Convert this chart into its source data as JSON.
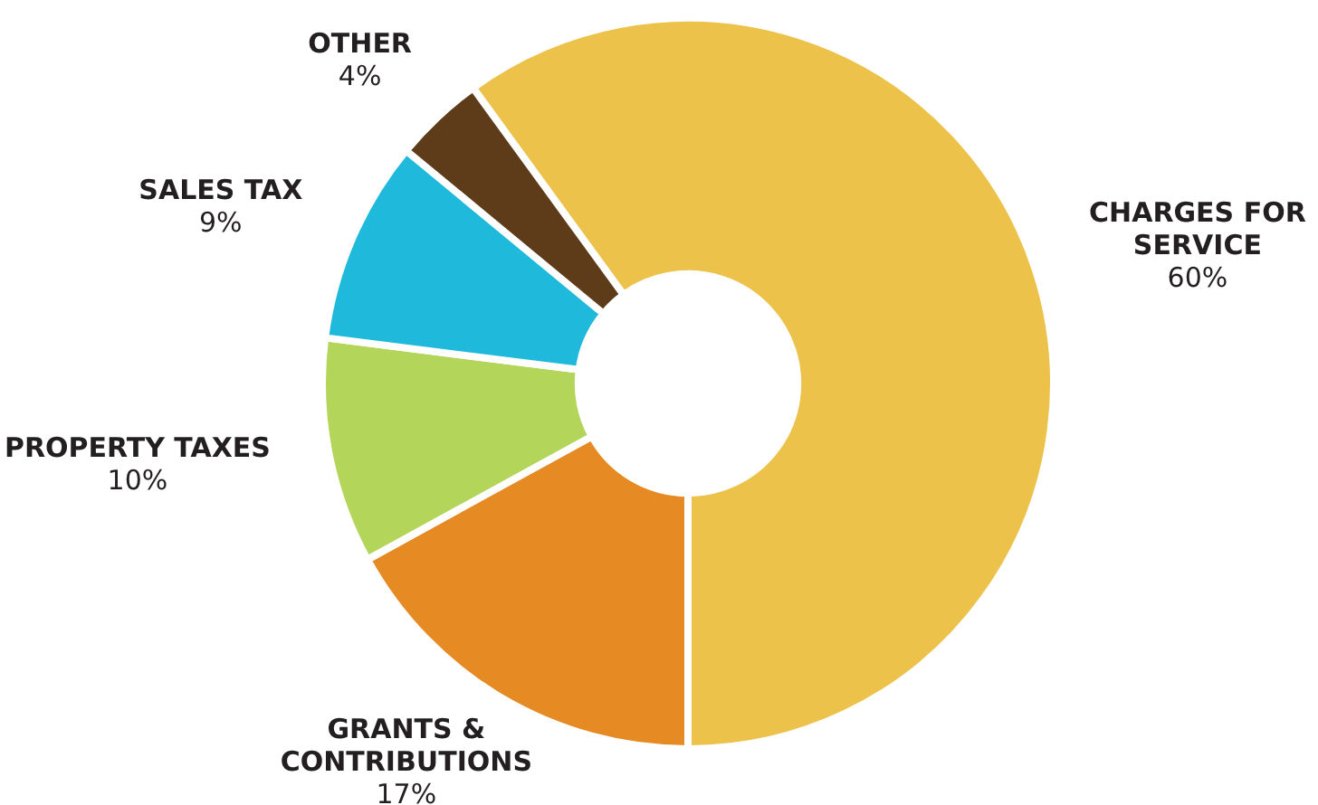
{
  "chart_data": {
    "type": "donut",
    "categories": [
      "CHARGES FOR SERVICE",
      "GRANTS & CONTRIBUTIONS",
      "PROPERTY TAXES",
      "SALES TAX",
      "OTHER"
    ],
    "values": [
      60,
      17,
      10,
      9,
      4
    ],
    "colors": [
      "#ecc24a",
      "#e68a24",
      "#b3d55a",
      "#1fbadb",
      "#5e3c1a"
    ],
    "value_labels": [
      "60%",
      "17%",
      "10%",
      "9%",
      "4%"
    ],
    "legend": false
  }
}
